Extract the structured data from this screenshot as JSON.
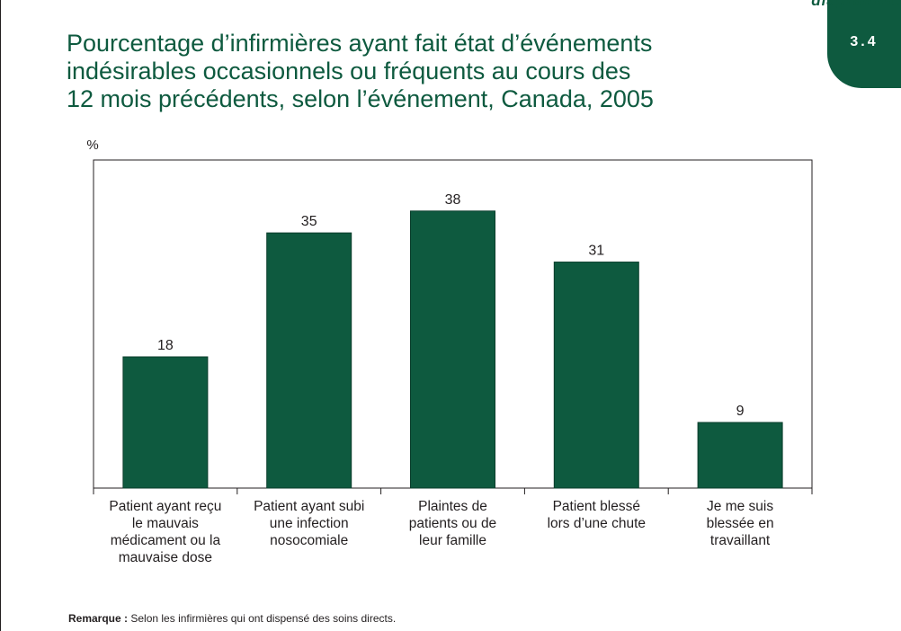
{
  "header": {
    "section_label": "diagramme",
    "section_number": "3.4"
  },
  "title_lines": [
    "Pourcentage d’infirmières ayant fait état d’événements",
    "indésirables occasionnels ou fréquents au cours des",
    "12 mois précédents, selon l’événement, Canada, 2005"
  ],
  "note": {
    "label": "Remarque :",
    "text": " Selon les infirmières qui ont dispensé des soins directs."
  },
  "colors": {
    "bar": "#0e5a3f",
    "accent": "#0e5a3f",
    "text": "#231f20"
  },
  "chart_data": {
    "type": "bar",
    "title": "Pourcentage d’infirmières ayant fait état d’événements indésirables occasionnels ou fréquents au cours des 12 mois précédents, selon l’événement, Canada, 2005",
    "ylabel": "%",
    "xlabel": "",
    "ylim": [
      0,
      45
    ],
    "grid": false,
    "categories": [
      [
        "Patient ayant reçu",
        "le mauvais",
        "médicament ou la",
        "mauvaise dose"
      ],
      [
        "Patient ayant subi",
        "une infection",
        "nosocomiale"
      ],
      [
        "Plaintes de",
        "patients ou de",
        "leur famille"
      ],
      [
        "Patient blessé",
        "lors d’une chute"
      ],
      [
        "Je me suis",
        "blessée en",
        "travaillant"
      ]
    ],
    "values": [
      18,
      35,
      38,
      31,
      9
    ]
  }
}
